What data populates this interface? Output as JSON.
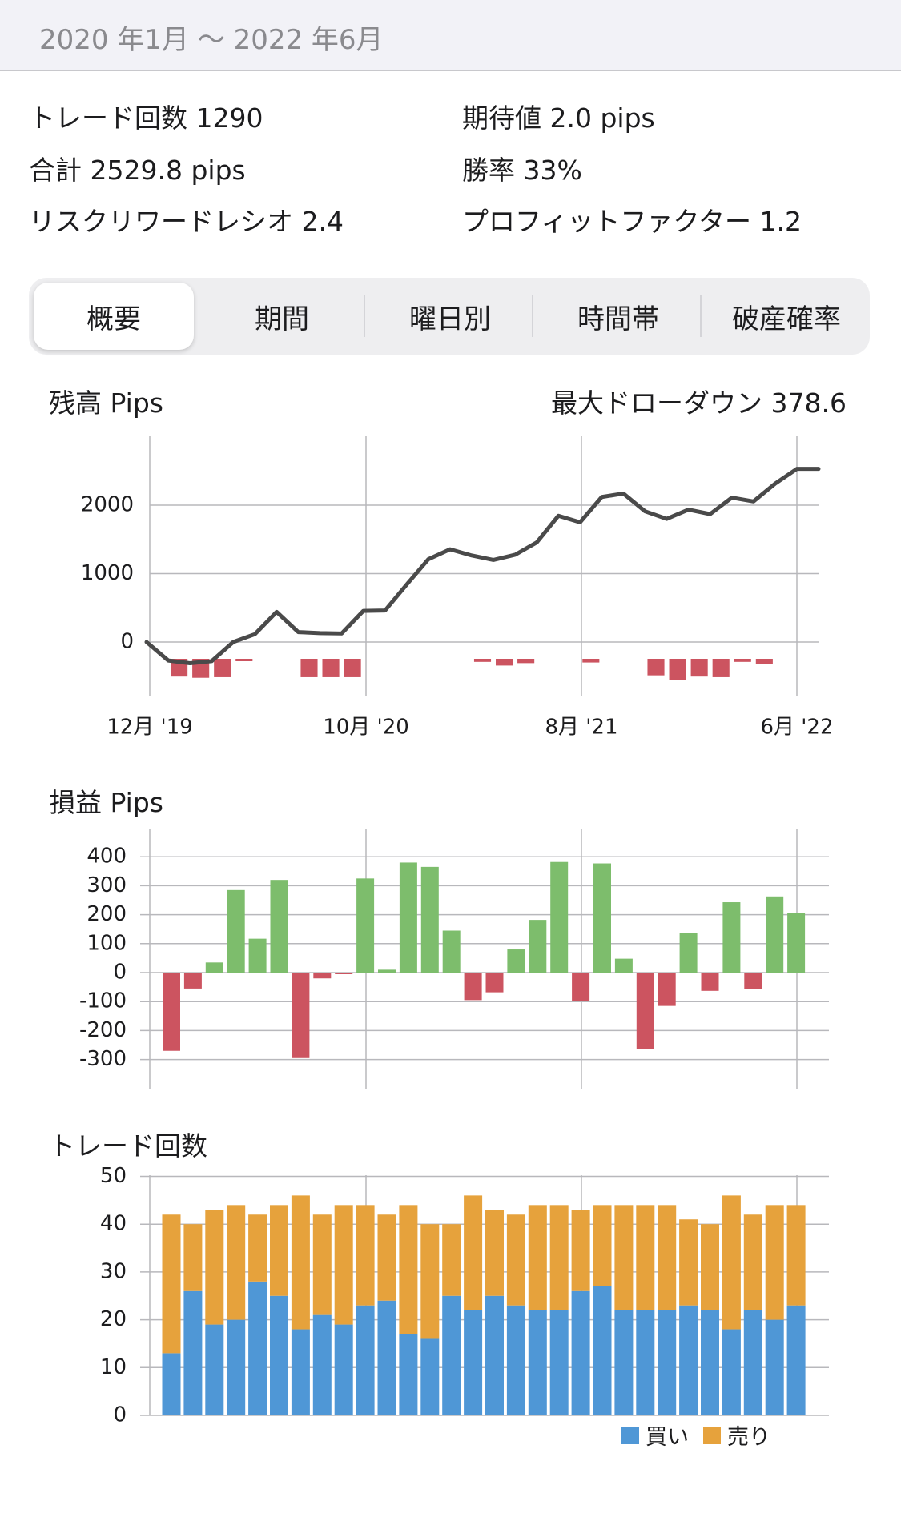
{
  "header": {
    "period": "2020 年1月 〜 2022 年6月"
  },
  "stats": {
    "trades": "トレード回数 1290",
    "expectancy": "期待値 2.0 pips",
    "total": "合計 2529.8 pips",
    "win_rate": "勝率 33%",
    "risk_reward": "リスクリワードレシオ 2.4",
    "profit_factor": "プロフィットファクター 1.2"
  },
  "tabs": [
    {
      "label": "概要",
      "active": true
    },
    {
      "label": "期間",
      "active": false
    },
    {
      "label": "曜日別",
      "active": false
    },
    {
      "label": "時間帯",
      "active": false
    },
    {
      "label": "破産確率",
      "active": false
    }
  ],
  "balance_section": {
    "title": "残高 Pips",
    "max_drawdown": "最大ドローダウン 378.6"
  },
  "pl_section": {
    "title": "損益 Pips"
  },
  "trades_section": {
    "title": "トレード回数"
  },
  "colors": {
    "line": "#4a4a4a",
    "drawdown": "#cc5460",
    "gain": "#7dbd6c",
    "loss": "#cc5460",
    "buy": "#4f97d6",
    "sell": "#e6a23c",
    "grid": "#b8b8bc"
  },
  "chart_data": [
    {
      "type": "line",
      "title": "残高 Pips",
      "x_tick_labels": [
        "12月 '19",
        "10月 '20",
        "8月 '21",
        "6月 '22"
      ],
      "y_ticks": [
        0,
        1000,
        2000
      ],
      "ylim": [
        -800,
        3000
      ],
      "series": [
        {
          "values": [
            0,
            -270,
            -310,
            -280,
            0,
            115,
            440,
            145,
            130,
            125,
            455,
            460,
            840,
            1210,
            1355,
            1265,
            1200,
            1275,
            1455,
            1845,
            1750,
            2120,
            2170,
            1910,
            1800,
            1935,
            1870,
            2110,
            2055,
            2315,
            2530,
            2530
          ]
        }
      ],
      "drawdown_bars": [
        0,
        -290,
        -310,
        -300,
        -10,
        0,
        0,
        -300,
        -300,
        -300,
        0,
        0,
        0,
        0,
        0,
        -50,
        -110,
        -70,
        0,
        0,
        -60,
        0,
        0,
        -270,
        -350,
        -290,
        -300,
        -50,
        -90,
        0,
        0,
        0
      ]
    },
    {
      "type": "bar",
      "title": "損益 Pips",
      "y_ticks": [
        400,
        300,
        200,
        100,
        0,
        -100,
        -200,
        -300
      ],
      "ylim": [
        -400,
        400
      ],
      "values": [
        -270,
        -55,
        35,
        285,
        117,
        320,
        -295,
        -20,
        -5,
        325,
        10,
        380,
        365,
        145,
        -95,
        -68,
        80,
        182,
        382,
        -97,
        377,
        48,
        -265,
        -115,
        137,
        -63,
        243,
        -57,
        263,
        207
      ]
    },
    {
      "type": "bar",
      "title": "トレード回数",
      "y_ticks": [
        50,
        40,
        30,
        20,
        10,
        0
      ],
      "ylim": [
        0,
        50
      ],
      "series": [
        {
          "name": "買い",
          "values": [
            13,
            26,
            19,
            20,
            28,
            25,
            18,
            21,
            19,
            23,
            24,
            17,
            16,
            25,
            22,
            25,
            23,
            22,
            22,
            26,
            27,
            22,
            22,
            22,
            23,
            22,
            18,
            22,
            20,
            23
          ]
        },
        {
          "name": "売り",
          "values": [
            29,
            14,
            24,
            24,
            14,
            19,
            28,
            21,
            25,
            21,
            18,
            27,
            24,
            15,
            24,
            18,
            19,
            22,
            22,
            17,
            17,
            22,
            22,
            22,
            18,
            18,
            28,
            20,
            24,
            21
          ]
        }
      ]
    }
  ]
}
